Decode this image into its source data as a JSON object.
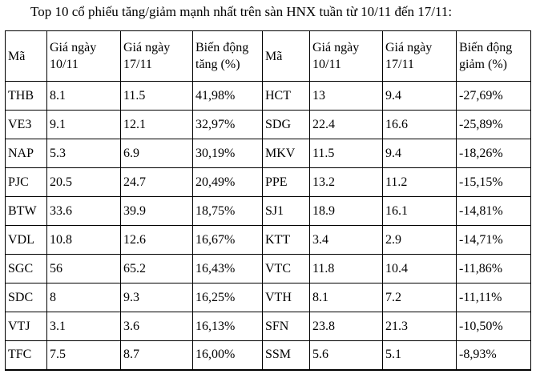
{
  "title": "Top 10 cổ phiếu tăng/giảm mạnh nhất trên sàn HNX tuần từ 10/11 đến 17/11:",
  "table": {
    "headers": [
      "Mã",
      "Giá ngày 10/11",
      "Giá ngày 17/11",
      "Biến động tăng (%)",
      "Mã",
      "Giá ngày 10/11",
      "Giá ngày 17/11",
      "Biến động giảm (%)"
    ],
    "rows": [
      [
        "THB",
        "8.1",
        "11.5",
        "41,98%",
        "HCT",
        "13",
        "9.4",
        "-27,69%"
      ],
      [
        "VE3",
        "9.1",
        "12.1",
        "32,97%",
        "SDG",
        "22.4",
        "16.6",
        "-25,89%"
      ],
      [
        "NAP",
        "5.3",
        "6.9",
        "30,19%",
        "MKV",
        "11.5",
        "9.4",
        "-18,26%"
      ],
      [
        "PJC",
        "20.5",
        "24.7",
        "20,49%",
        "PPE",
        "13.2",
        "11.2",
        "-15,15%"
      ],
      [
        "BTW",
        "33.6",
        "39.9",
        "18,75%",
        "SJ1",
        "18.9",
        "16.1",
        "-14,81%"
      ],
      [
        "VDL",
        "10.8",
        "12.6",
        "16,67%",
        "KTT",
        "3.4",
        "2.9",
        "-14,71%"
      ],
      [
        "SGC",
        "56",
        "65.2",
        "16,43%",
        "VTC",
        "11.8",
        "10.4",
        "-11,86%"
      ],
      [
        "SDC",
        "8",
        "9.3",
        "16,25%",
        "VTH",
        "8.1",
        "7.2",
        "-11,11%"
      ],
      [
        "VTJ",
        "3.1",
        "3.6",
        "16,13%",
        "SFN",
        "23.8",
        "21.3",
        "-10,50%"
      ],
      [
        "TFC",
        "7.5",
        "8.7",
        "16,00%",
        "SSM",
        "5.6",
        "5.1",
        "-8,93%"
      ]
    ]
  },
  "colors": {
    "text": "#000000",
    "border": "#000000",
    "background": "#ffffff"
  }
}
